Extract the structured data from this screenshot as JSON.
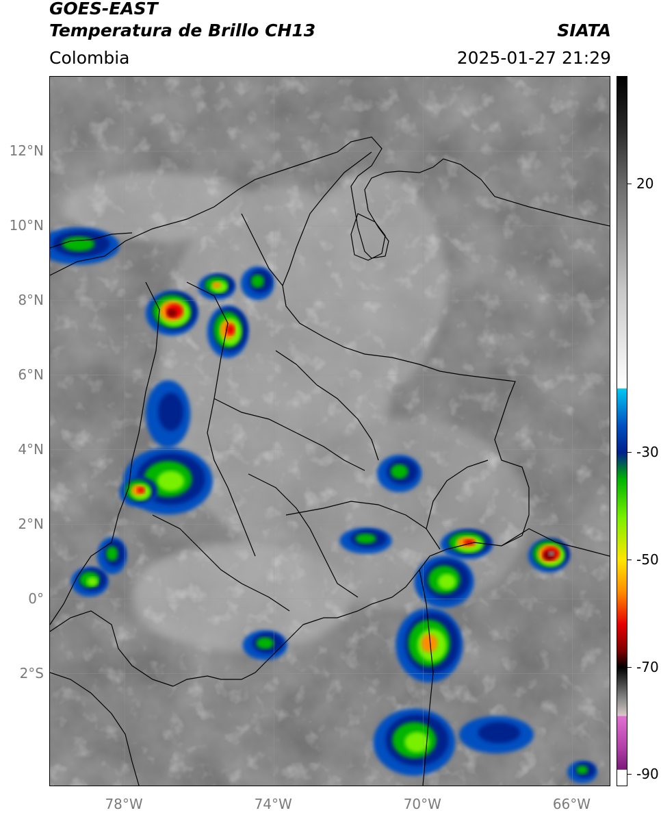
{
  "header": {
    "satellite": "GOES-EAST",
    "product": "Temperatura de Brillo CH13",
    "region": "Colombia",
    "organization": "SIATA",
    "timestamp": "2025-01-27 21:29"
  },
  "map": {
    "extent": {
      "lon_min": -80.0,
      "lon_max": -65.0,
      "lat_min": -5.0,
      "lat_max": 14.0
    },
    "lat_labels": [
      {
        "value": 12,
        "text": "12°N"
      },
      {
        "value": 10,
        "text": "10°N"
      },
      {
        "value": 8,
        "text": "8°N"
      },
      {
        "value": 6,
        "text": "6°N"
      },
      {
        "value": 4,
        "text": "4°N"
      },
      {
        "value": 2,
        "text": "2°N"
      },
      {
        "value": 0,
        "text": "0°"
      },
      {
        "value": -2,
        "text": "2°S"
      }
    ],
    "lon_labels": [
      {
        "value": -78,
        "text": "78°W"
      },
      {
        "value": -74,
        "text": "74°W"
      },
      {
        "value": -70,
        "text": "70°W"
      },
      {
        "value": -66,
        "text": "66°W"
      }
    ],
    "storm_cells": [
      {
        "lon": -76.7,
        "lat": 7.7,
        "rx": 0.7,
        "ry": 0.6,
        "min_temp": -68
      },
      {
        "lon": -75.2,
        "lat": 7.2,
        "rx": 0.55,
        "ry": 0.7,
        "min_temp": -62
      },
      {
        "lon": -75.5,
        "lat": 8.4,
        "rx": 0.5,
        "ry": 0.35,
        "min_temp": -58
      },
      {
        "lon": -74.4,
        "lat": 8.5,
        "rx": 0.45,
        "ry": 0.45,
        "min_temp": -42
      },
      {
        "lon": -79.2,
        "lat": 9.5,
        "rx": 1.1,
        "ry": 0.5,
        "min_temp": -40
      },
      {
        "lon": -76.8,
        "lat": 5.0,
        "rx": 0.6,
        "ry": 0.9,
        "min_temp": -30
      },
      {
        "lon": -76.8,
        "lat": 3.2,
        "rx": 1.2,
        "ry": 0.9,
        "min_temp": -50
      },
      {
        "lon": -77.6,
        "lat": 2.9,
        "rx": 0.5,
        "ry": 0.4,
        "min_temp": -62
      },
      {
        "lon": -78.3,
        "lat": 1.2,
        "rx": 0.4,
        "ry": 0.5,
        "min_temp": -40
      },
      {
        "lon": -78.9,
        "lat": 0.5,
        "rx": 0.5,
        "ry": 0.4,
        "min_temp": -48
      },
      {
        "lon": -70.6,
        "lat": 3.4,
        "rx": 0.6,
        "ry": 0.5,
        "min_temp": -38
      },
      {
        "lon": -71.5,
        "lat": 1.6,
        "rx": 0.7,
        "ry": 0.35,
        "min_temp": -38
      },
      {
        "lon": -68.8,
        "lat": 1.5,
        "rx": 0.7,
        "ry": 0.4,
        "min_temp": -62
      },
      {
        "lon": -69.4,
        "lat": 0.5,
        "rx": 0.8,
        "ry": 0.7,
        "min_temp": -52
      },
      {
        "lon": -69.8,
        "lat": -1.2,
        "rx": 0.9,
        "ry": 1.0,
        "min_temp": -58
      },
      {
        "lon": -66.6,
        "lat": 1.2,
        "rx": 0.55,
        "ry": 0.45,
        "min_temp": -75
      },
      {
        "lon": -74.2,
        "lat": -1.2,
        "rx": 0.6,
        "ry": 0.4,
        "min_temp": -42
      },
      {
        "lon": -70.2,
        "lat": -3.8,
        "rx": 1.1,
        "ry": 0.9,
        "min_temp": -50
      },
      {
        "lon": -68.0,
        "lat": -3.6,
        "rx": 1.0,
        "ry": 0.5,
        "min_temp": -32
      },
      {
        "lon": -65.7,
        "lat": -4.6,
        "rx": 0.4,
        "ry": 0.3,
        "min_temp": -45
      }
    ]
  },
  "colorbar": {
    "vmin": -92,
    "vmax": 40,
    "tick_labels": [
      {
        "value": 20,
        "text": "20"
      },
      {
        "value": -30,
        "text": "-30"
      },
      {
        "value": -50,
        "text": "-50"
      },
      {
        "value": -70,
        "text": "-70"
      },
      {
        "value": -90,
        "text": "-90"
      }
    ],
    "stops": [
      {
        "t": 40,
        "color": "#000000"
      },
      {
        "t": 30,
        "color": "#2a2a2a"
      },
      {
        "t": 20,
        "color": "#6a6a6a"
      },
      {
        "t": 0,
        "color": "#c8c8c8"
      },
      {
        "t": -18,
        "color": "#ffffff"
      },
      {
        "t": -18.1,
        "color": "#00c8f0"
      },
      {
        "t": -25,
        "color": "#0050c0"
      },
      {
        "t": -30,
        "color": "#00208c"
      },
      {
        "t": -35,
        "color": "#00b400"
      },
      {
        "t": -42,
        "color": "#78f000"
      },
      {
        "t": -50,
        "color": "#ffe600"
      },
      {
        "t": -56,
        "color": "#ff8c00"
      },
      {
        "t": -62,
        "color": "#e60000"
      },
      {
        "t": -67,
        "color": "#7a0000"
      },
      {
        "t": -70,
        "color": "#000000"
      },
      {
        "t": -76,
        "color": "#8c8c8c"
      },
      {
        "t": -79,
        "color": "#d8c8c8"
      },
      {
        "t": -79.1,
        "color": "#e070d0"
      },
      {
        "t": -85,
        "color": "#b040a8"
      },
      {
        "t": -89,
        "color": "#7a1a7a"
      },
      {
        "t": -89.1,
        "color": "#ffffff"
      },
      {
        "t": -92,
        "color": "#ffffff"
      }
    ]
  }
}
